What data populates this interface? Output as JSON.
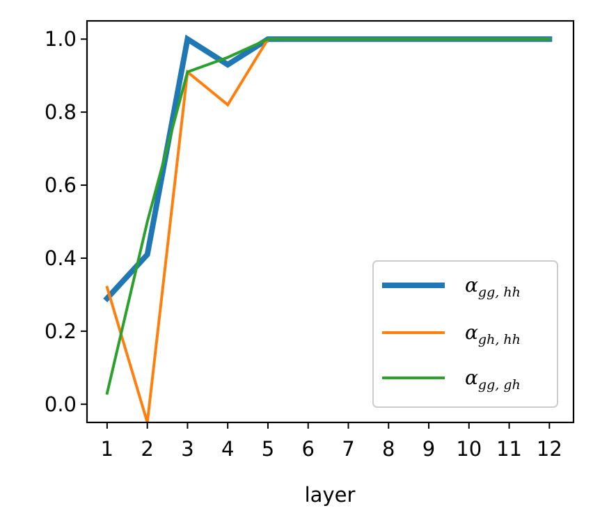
{
  "chart_data": {
    "type": "line",
    "title": "",
    "xlabel": "layer",
    "ylabel": "",
    "x": [
      1,
      2,
      3,
      4,
      5,
      6,
      7,
      8,
      9,
      10,
      11,
      12
    ],
    "x_ticks": [
      "1",
      "2",
      "3",
      "4",
      "5",
      "6",
      "7",
      "8",
      "9",
      "10",
      "11",
      "12"
    ],
    "y_ticks": [
      "0.0",
      "0.2",
      "0.4",
      "0.6",
      "0.8",
      "1.0"
    ],
    "ylim": [
      -0.05,
      1.05
    ],
    "xlim": [
      0.5,
      12.6
    ],
    "grid": false,
    "legend_position": "lower-right",
    "series": [
      {
        "name": "α_{gg,hh}",
        "name_main": "α",
        "name_sub": "gg, hh",
        "color": "#1f77b4",
        "values": [
          0.29,
          0.41,
          1.0,
          0.93,
          1.0,
          1.0,
          1.0,
          1.0,
          1.0,
          1.0,
          1.0,
          1.0
        ]
      },
      {
        "name": "α_{gh,hh}",
        "name_main": "α",
        "name_sub": "gh, hh",
        "color": "#ff7f0e",
        "values": [
          0.32,
          -0.05,
          0.91,
          0.82,
          1.0,
          1.0,
          1.0,
          1.0,
          1.0,
          1.0,
          1.0,
          1.0
        ]
      },
      {
        "name": "α_{gg,gh}",
        "name_main": "α",
        "name_sub": "gg, gh",
        "color": "#2ca02c",
        "values": [
          0.03,
          0.5,
          0.91,
          0.95,
          1.0,
          1.0,
          1.0,
          1.0,
          1.0,
          1.0,
          1.0,
          1.0
        ]
      }
    ]
  }
}
